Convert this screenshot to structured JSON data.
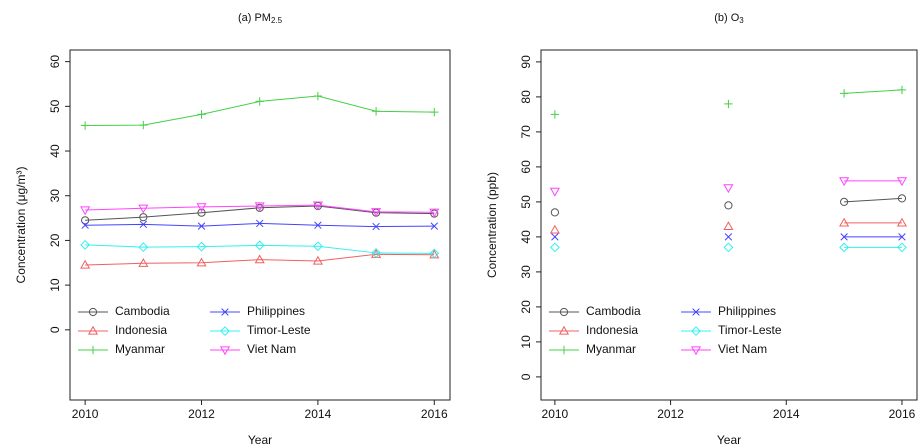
{
  "chart_data": [
    {
      "type": "line",
      "title": "(a) PM",
      "title_subscript": "2.5",
      "x_label": "Year",
      "y_label": "Concentration (μg/m³)",
      "x": [
        2010,
        2011,
        2012,
        2013,
        2014,
        2015,
        2016
      ],
      "xlim": [
        2009.74,
        2016.27
      ],
      "xticks": [
        2010,
        2012,
        2014,
        2016
      ],
      "ylim": [
        -15.7,
        62.6
      ],
      "yticks": [
        0,
        10,
        20,
        30,
        40,
        50,
        60
      ],
      "legend": "bottomleft",
      "series": [
        {
          "name": "Cambodia",
          "color": "#555555",
          "marker": "circle",
          "values": [
            24.5,
            25.2,
            26.2,
            27.3,
            27.7,
            26.2,
            26.0
          ]
        },
        {
          "name": "Indonesia",
          "color": "#f06060",
          "marker": "triangle",
          "values": [
            14.5,
            14.9,
            15.0,
            15.7,
            15.4,
            16.9,
            16.8
          ]
        },
        {
          "name": "Myanmar",
          "color": "#44d044",
          "marker": "plus",
          "values": [
            45.7,
            45.8,
            48.2,
            51.1,
            52.3,
            48.9,
            48.7
          ]
        },
        {
          "name": "Philippines",
          "color": "#4444ff",
          "marker": "cross",
          "values": [
            23.4,
            23.6,
            23.2,
            23.8,
            23.4,
            23.1,
            23.2
          ]
        },
        {
          "name": "Timor-Leste",
          "color": "#33f0f0",
          "marker": "diamond",
          "values": [
            19.0,
            18.5,
            18.6,
            18.9,
            18.7,
            17.2,
            17.1
          ]
        },
        {
          "name": "Viet Nam",
          "color": "#ff44ff",
          "marker": "triangle-down",
          "values": [
            26.8,
            27.2,
            27.5,
            27.7,
            27.9,
            26.4,
            26.3
          ]
        }
      ]
    },
    {
      "type": "line",
      "title": "(b) O",
      "title_subscript": "3",
      "x_label": "Year",
      "y_label": "Concentration (ppb)",
      "x": [
        2010,
        2011,
        2012,
        2013,
        2014,
        2015,
        2016
      ],
      "xlim": [
        2009.76,
        2016.26
      ],
      "xticks": [
        2010,
        2012,
        2014,
        2016
      ],
      "ylim": [
        -6.6,
        93.4
      ],
      "yticks": [
        0,
        10,
        20,
        30,
        40,
        50,
        60,
        70,
        80,
        90
      ],
      "legend": "bottomleft",
      "series": [
        {
          "name": "Cambodia",
          "color": "#555555",
          "marker": "circle",
          "values": [
            47,
            null,
            null,
            49,
            null,
            50,
            51
          ]
        },
        {
          "name": "Indonesia",
          "color": "#f06060",
          "marker": "triangle",
          "values": [
            42,
            null,
            null,
            43,
            null,
            44,
            44
          ]
        },
        {
          "name": "Myanmar",
          "color": "#44d044",
          "marker": "plus",
          "values": [
            75,
            null,
            null,
            78,
            null,
            81,
            82
          ]
        },
        {
          "name": "Philippines",
          "color": "#4444ff",
          "marker": "cross",
          "values": [
            40,
            null,
            null,
            40,
            null,
            40,
            40
          ]
        },
        {
          "name": "Timor-Leste",
          "color": "#33f0f0",
          "marker": "diamond",
          "values": [
            37,
            null,
            null,
            37,
            null,
            37,
            37
          ]
        },
        {
          "name": "Viet Nam",
          "color": "#ff44ff",
          "marker": "triangle-down",
          "values": [
            53,
            null,
            null,
            54,
            null,
            56,
            56
          ]
        }
      ]
    }
  ]
}
